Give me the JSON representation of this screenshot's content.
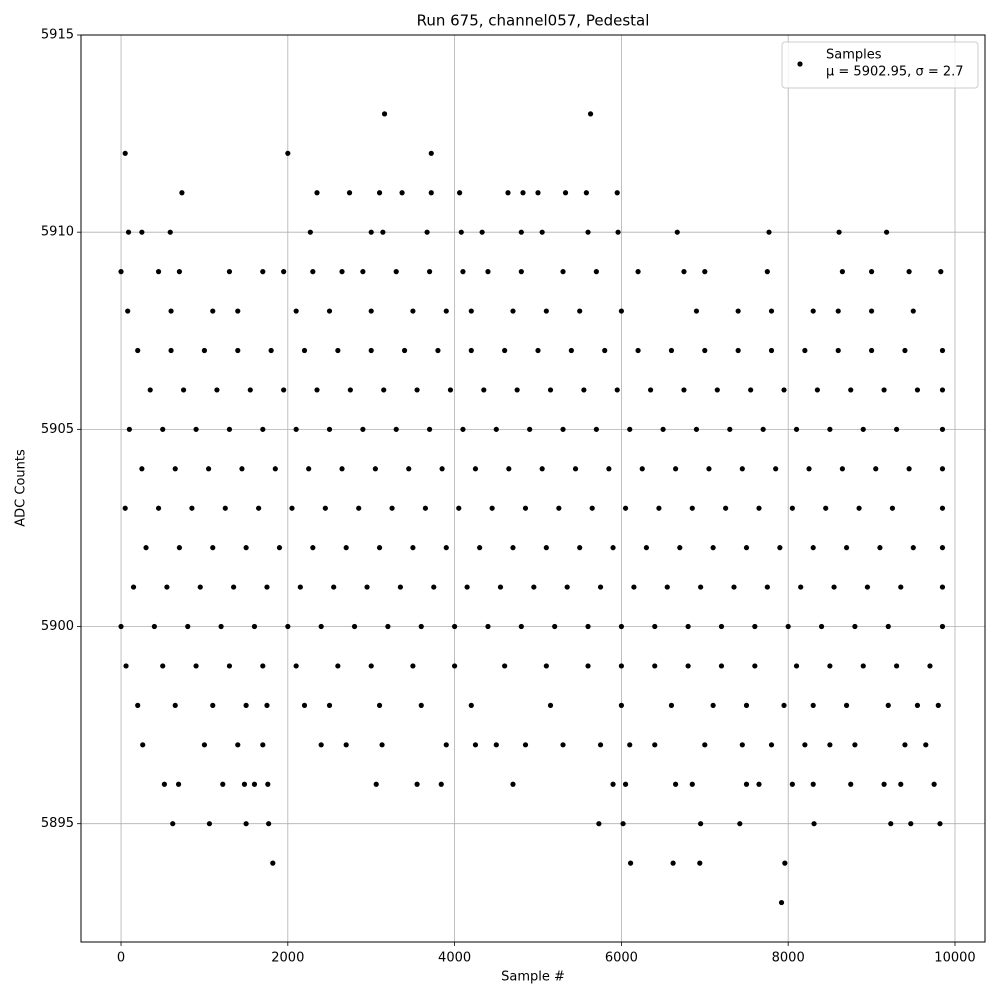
{
  "chart_data": {
    "type": "scatter",
    "title": "Run 675, channel057, Pedestal",
    "x_label": "Sample #",
    "y_label": "ADC Counts",
    "xlim": [
      -480,
      10360
    ],
    "ylim": [
      5892,
      5915
    ],
    "xticks": [
      0,
      2000,
      4000,
      6000,
      8000,
      10000
    ],
    "yticks": [
      5895,
      5900,
      5905,
      5910,
      5915
    ],
    "grid": true,
    "legend": "upper right",
    "legend_note": "μ = 5902.95, σ = 2.7",
    "series": [
      {
        "name": "Samples",
        "color": "#000000",
        "x": [
          0,
          400,
          800,
          1200,
          1600,
          2000,
          2400,
          2800,
          3200,
          3600,
          4000,
          4400,
          4800,
          5200,
          5600,
          6000,
          6400,
          6800,
          7200,
          7600,
          8000,
          8400,
          8800,
          9200,
          9850,
          150,
          550,
          950,
          1350,
          1750,
          2150,
          2550,
          2950,
          3350,
          3750,
          4150,
          4550,
          4950,
          5350,
          5750,
          6150,
          6550,
          6950,
          7350,
          7750,
          8150,
          8550,
          8950,
          9350,
          9850,
          300,
          700,
          1100,
          1500,
          1900,
          2300,
          2700,
          3100,
          3500,
          3900,
          4300,
          4700,
          5100,
          5500,
          5900,
          6300,
          6700,
          7100,
          7500,
          7900,
          8300,
          8700,
          9100,
          9500,
          9850,
          50,
          450,
          850,
          1250,
          1650,
          2050,
          2450,
          2850,
          3250,
          3650,
          4050,
          4450,
          4850,
          5250,
          5650,
          6050,
          6450,
          6850,
          7250,
          7650,
          8050,
          8450,
          8850,
          9250,
          9850,
          250,
          650,
          1050,
          1450,
          1850,
          2250,
          2650,
          3050,
          3450,
          3850,
          4250,
          4650,
          5050,
          5450,
          5850,
          6250,
          6650,
          7050,
          7450,
          7850,
          8250,
          8650,
          9050,
          9450,
          9850,
          100,
          500,
          900,
          1300,
          1700,
          2100,
          2500,
          2900,
          3300,
          3700,
          4100,
          4500,
          4900,
          5300,
          5700,
          6100,
          6500,
          6900,
          7300,
          7700,
          8100,
          8500,
          8900,
          9300,
          9850,
          350,
          750,
          1150,
          1550,
          1950,
          2350,
          2750,
          3150,
          3550,
          3950,
          4350,
          4750,
          5150,
          5550,
          5950,
          6350,
          6750,
          7150,
          7550,
          7950,
          8350,
          8750,
          9150,
          9550,
          9850,
          200,
          600,
          1000,
          1400,
          1800,
          2200,
          2600,
          3000,
          3400,
          3800,
          4200,
          4600,
          5000,
          5400,
          5800,
          6200,
          6600,
          7000,
          7400,
          7800,
          8200,
          8600,
          9000,
          9400,
          9850,
          80,
          600,
          1100,
          1400,
          2100,
          2500,
          3000,
          3500,
          3900,
          4200,
          4700,
          5100,
          5500,
          6000,
          6900,
          7400,
          7800,
          8300,
          8600,
          9000,
          9500,
          0,
          450,
          700,
          1300,
          1700,
          1950,
          2300,
          2650,
          2900,
          3300,
          3700,
          4100,
          4400,
          4800,
          5300,
          5700,
          6200,
          6750,
          7000,
          7750,
          8650,
          9000,
          9450,
          9830,
          60,
          500,
          900,
          1300,
          1700,
          2100,
          2600,
          3000,
          3500,
          4000,
          4600,
          5100,
          5600,
          6000,
          6400,
          6800,
          7200,
          7600,
          8100,
          8500,
          8900,
          9300,
          9700,
          200,
          650,
          1100,
          1500,
          1750,
          2200,
          2500,
          3100,
          3600,
          4200,
          5150,
          6000,
          6600,
          7100,
          7500,
          7950,
          8300,
          8700,
          9200,
          9550,
          9800,
          260,
          1000,
          1400,
          1700,
          2400,
          2700,
          3130,
          3900,
          4250,
          4500,
          4850,
          5300,
          5750,
          6100,
          6400,
          7000,
          7450,
          7800,
          8200,
          8500,
          8800,
          9400,
          9650,
          520,
          690,
          1220,
          1480,
          1600,
          1760,
          3060,
          3550,
          3840,
          4700,
          5900,
          6050,
          6650,
          6850,
          7500,
          7650,
          8050,
          8300,
          8750,
          9150,
          9350,
          9750,
          620,
          1060,
          1500,
          1770,
          5730,
          6020,
          6950,
          7420,
          8310,
          9230,
          9470,
          9820,
          1820,
          6110,
          6620,
          6940,
          7960,
          7920,
          90,
          250,
          590,
          2270,
          3000,
          3140,
          3670,
          4080,
          4330,
          4800,
          5050,
          5600,
          5960,
          6670,
          7770,
          8610,
          9180,
          730,
          2350,
          2740,
          3100,
          3370,
          3720,
          4060,
          4640,
          4820,
          5000,
          5330,
          5580,
          5950,
          50,
          2000,
          3720,
          3160,
          5630
        ],
        "values": [
          5900,
          5900,
          5900,
          5900,
          5900,
          5900,
          5900,
          5900,
          5900,
          5900,
          5900,
          5900,
          5900,
          5900,
          5900,
          5900,
          5900,
          5900,
          5900,
          5900,
          5900,
          5900,
          5900,
          5900,
          5900,
          5901,
          5901,
          5901,
          5901,
          5901,
          5901,
          5901,
          5901,
          5901,
          5901,
          5901,
          5901,
          5901,
          5901,
          5901,
          5901,
          5901,
          5901,
          5901,
          5901,
          5901,
          5901,
          5901,
          5901,
          5901,
          5902,
          5902,
          5902,
          5902,
          5902,
          5902,
          5902,
          5902,
          5902,
          5902,
          5902,
          5902,
          5902,
          5902,
          5902,
          5902,
          5902,
          5902,
          5902,
          5902,
          5902,
          5902,
          5902,
          5902,
          5902,
          5903,
          5903,
          5903,
          5903,
          5903,
          5903,
          5903,
          5903,
          5903,
          5903,
          5903,
          5903,
          5903,
          5903,
          5903,
          5903,
          5903,
          5903,
          5903,
          5903,
          5903,
          5903,
          5903,
          5903,
          5903,
          5904,
          5904,
          5904,
          5904,
          5904,
          5904,
          5904,
          5904,
          5904,
          5904,
          5904,
          5904,
          5904,
          5904,
          5904,
          5904,
          5904,
          5904,
          5904,
          5904,
          5904,
          5904,
          5904,
          5904,
          5904,
          5905,
          5905,
          5905,
          5905,
          5905,
          5905,
          5905,
          5905,
          5905,
          5905,
          5905,
          5905,
          5905,
          5905,
          5905,
          5905,
          5905,
          5905,
          5905,
          5905,
          5905,
          5905,
          5905,
          5905,
          5905,
          5906,
          5906,
          5906,
          5906,
          5906,
          5906,
          5906,
          5906,
          5906,
          5906,
          5906,
          5906,
          5906,
          5906,
          5906,
          5906,
          5906,
          5906,
          5906,
          5906,
          5906,
          5906,
          5906,
          5906,
          5906,
          5907,
          5907,
          5907,
          5907,
          5907,
          5907,
          5907,
          5907,
          5907,
          5907,
          5907,
          5907,
          5907,
          5907,
          5907,
          5907,
          5907,
          5907,
          5907,
          5907,
          5907,
          5907,
          5907,
          5907,
          5907,
          5908,
          5908,
          5908,
          5908,
          5908,
          5908,
          5908,
          5908,
          5908,
          5908,
          5908,
          5908,
          5908,
          5908,
          5908,
          5908,
          5908,
          5908,
          5908,
          5908,
          5908,
          5909,
          5909,
          5909,
          5909,
          5909,
          5909,
          5909,
          5909,
          5909,
          5909,
          5909,
          5909,
          5909,
          5909,
          5909,
          5909,
          5909,
          5909,
          5909,
          5909,
          5909,
          5909,
          5909,
          5909,
          5899,
          5899,
          5899,
          5899,
          5899,
          5899,
          5899,
          5899,
          5899,
          5899,
          5899,
          5899,
          5899,
          5899,
          5899,
          5899,
          5899,
          5899,
          5899,
          5899,
          5899,
          5899,
          5899,
          5898,
          5898,
          5898,
          5898,
          5898,
          5898,
          5898,
          5898,
          5898,
          5898,
          5898,
          5898,
          5898,
          5898,
          5898,
          5898,
          5898,
          5898,
          5898,
          5898,
          5898,
          5897,
          5897,
          5897,
          5897,
          5897,
          5897,
          5897,
          5897,
          5897,
          5897,
          5897,
          5897,
          5897,
          5897,
          5897,
          5897,
          5897,
          5897,
          5897,
          5897,
          5897,
          5897,
          5897,
          5896,
          5896,
          5896,
          5896,
          5896,
          5896,
          5896,
          5896,
          5896,
          5896,
          5896,
          5896,
          5896,
          5896,
          5896,
          5896,
          5896,
          5896,
          5896,
          5896,
          5896,
          5896,
          5895,
          5895,
          5895,
          5895,
          5895,
          5895,
          5895,
          5895,
          5895,
          5895,
          5895,
          5895,
          5894,
          5894,
          5894,
          5894,
          5894,
          5893,
          5910,
          5910,
          5910,
          5910,
          5910,
          5910,
          5910,
          5910,
          5910,
          5910,
          5910,
          5910,
          5910,
          5910,
          5910,
          5910,
          5910,
          5911,
          5911,
          5911,
          5911,
          5911,
          5911,
          5911,
          5911,
          5911,
          5911,
          5911,
          5911,
          5911,
          5912,
          5912,
          5912,
          5913,
          5913
        ]
      }
    ]
  }
}
